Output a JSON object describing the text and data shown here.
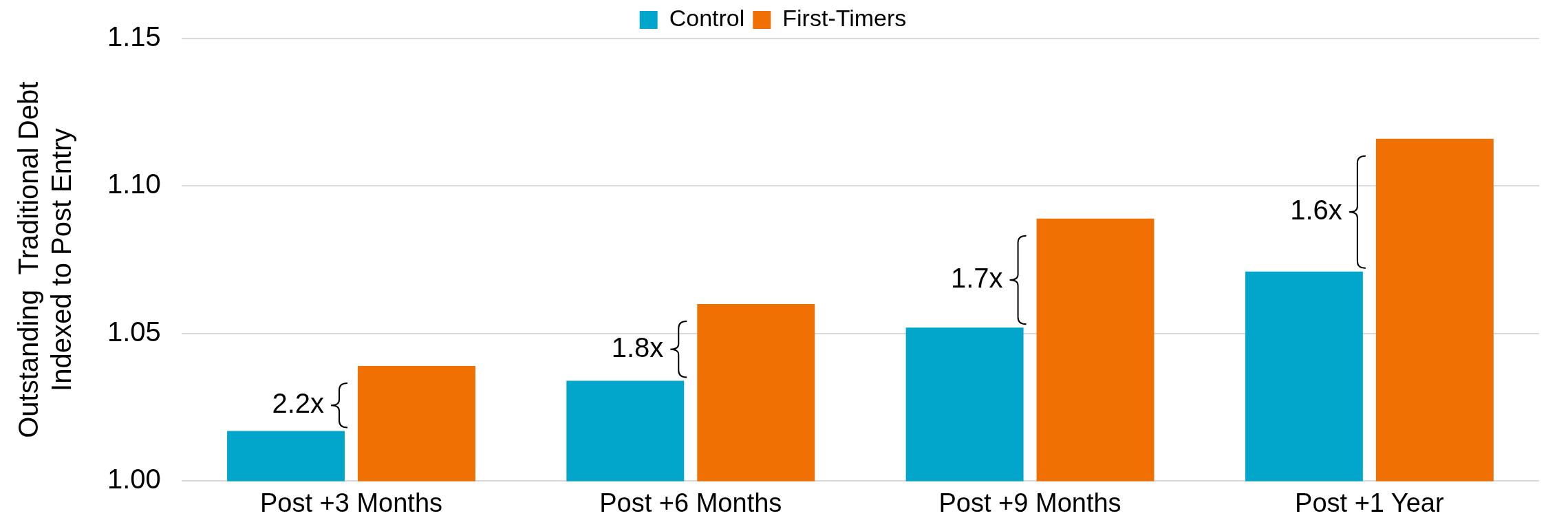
{
  "chart_data": {
    "type": "bar",
    "ylabel": "Outstanding  Traditional Debt\nIndexed to Post Entry",
    "categories": [
      "Post +3 Months",
      "Post +6 Months",
      "Post +9 Months",
      "Post +1 Year"
    ],
    "series": [
      {
        "name": "Control",
        "color": "#02a6cb",
        "values": [
          1.017,
          1.034,
          1.052,
          1.071
        ]
      },
      {
        "name": "First-Timers",
        "color": "#f07004",
        "values": [
          1.039,
          1.06,
          1.089,
          1.116
        ]
      }
    ],
    "ylim": [
      1.0,
      1.15
    ],
    "yticks": [
      {
        "value": 1,
        "label": "1.00"
      },
      1.05,
      {
        "value": 1.1,
        "label": "1.10"
      },
      1.15
    ],
    "grid": "y",
    "legend": "top",
    "annotations": [
      "2.2x",
      "1.8x",
      "1.7x",
      "1.6x"
    ]
  }
}
